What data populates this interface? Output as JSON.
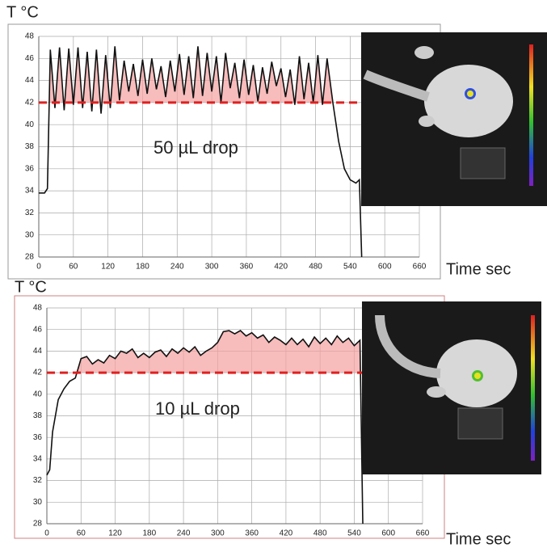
{
  "chart_data": [
    {
      "type": "line",
      "y_label": "T °C",
      "x_label": "Time sec",
      "annotation": "50 µL drop",
      "xlim": [
        0,
        660
      ],
      "xticks": [
        0,
        60,
        120,
        180,
        240,
        300,
        360,
        420,
        480,
        540,
        600,
        660
      ],
      "ylim": [
        28,
        48
      ],
      "yticks": [
        28,
        30,
        32,
        34,
        36,
        38,
        40,
        42,
        44,
        46,
        48
      ],
      "grid": true,
      "reference_line": 42,
      "reference_color": "#e02020",
      "fill_color": "#f4a0a0",
      "series": [
        {
          "color": "#111111",
          "x": [
            0,
            10,
            15,
            20,
            28,
            36,
            44,
            52,
            60,
            68,
            76,
            84,
            92,
            100,
            108,
            116,
            124,
            132,
            140,
            148,
            156,
            164,
            172,
            180,
            188,
            196,
            204,
            212,
            220,
            228,
            236,
            244,
            252,
            260,
            268,
            276,
            284,
            292,
            300,
            308,
            316,
            324,
            332,
            340,
            348,
            356,
            364,
            372,
            380,
            388,
            396,
            404,
            412,
            420,
            428,
            436,
            444,
            452,
            460,
            468,
            476,
            484,
            492,
            500,
            510,
            520,
            530,
            540,
            550,
            556,
            560
          ],
          "values": [
            33.8,
            33.8,
            34.2,
            46.8,
            41.5,
            47,
            41.3,
            46.9,
            41.8,
            47,
            41.5,
            46.6,
            41.2,
            46.8,
            41,
            46.3,
            41.5,
            47.1,
            42.2,
            45.8,
            43,
            45.5,
            42.6,
            45.9,
            42.8,
            46,
            43.2,
            45.3,
            42.5,
            45.8,
            43,
            46.4,
            42.7,
            46.2,
            42.4,
            47.1,
            42.6,
            46.5,
            43,
            46.2,
            42,
            46.5,
            43.3,
            45.6,
            42.4,
            45.9,
            42.7,
            45.4,
            42.1,
            45.2,
            42.8,
            45.7,
            43.5,
            45.1,
            42.5,
            45,
            41.8,
            46.2,
            42.3,
            45.6,
            42,
            46.3,
            41.8,
            46,
            42,
            38.5,
            36,
            35,
            34.7,
            35,
            28
          ]
        }
      ]
    },
    {
      "type": "line",
      "y_label": "T °C",
      "x_label": "Time sec",
      "annotation": "10 µL drop",
      "xlim": [
        0,
        660
      ],
      "xticks": [
        0,
        60,
        120,
        180,
        240,
        300,
        360,
        420,
        480,
        540,
        600,
        660
      ],
      "ylim": [
        28,
        48
      ],
      "yticks": [
        28,
        30,
        32,
        34,
        36,
        38,
        40,
        42,
        44,
        46,
        48
      ],
      "grid": true,
      "reference_line": 42,
      "reference_color": "#e02020",
      "fill_color": "#f4a0a0",
      "series": [
        {
          "color": "#111111",
          "x": [
            0,
            5,
            10,
            15,
            20,
            30,
            40,
            50,
            60,
            70,
            80,
            90,
            100,
            110,
            120,
            130,
            140,
            150,
            160,
            170,
            180,
            190,
            200,
            210,
            220,
            230,
            240,
            250,
            260,
            270,
            280,
            290,
            300,
            310,
            320,
            330,
            340,
            350,
            360,
            370,
            380,
            390,
            400,
            410,
            420,
            430,
            440,
            450,
            460,
            470,
            480,
            490,
            500,
            510,
            520,
            530,
            540,
            550,
            555
          ],
          "values": [
            32.5,
            33,
            36.5,
            38,
            39.5,
            40.5,
            41.2,
            41.5,
            43.3,
            43.5,
            42.8,
            43.2,
            42.9,
            43.6,
            43.3,
            44,
            43.8,
            44.2,
            43.4,
            43.8,
            43.4,
            43.9,
            44.1,
            43.5,
            44.2,
            43.8,
            44.3,
            43.9,
            44.4,
            43.6,
            44,
            44.3,
            44.8,
            45.8,
            45.9,
            45.6,
            45.9,
            45.4,
            45.7,
            45.2,
            45.5,
            44.8,
            45.3,
            45,
            44.6,
            45.2,
            44.6,
            45.1,
            44.4,
            45.3,
            44.7,
            45.2,
            44.6,
            45.4,
            44.8,
            45.2,
            44.5,
            45,
            28
          ]
        }
      ]
    }
  ]
}
